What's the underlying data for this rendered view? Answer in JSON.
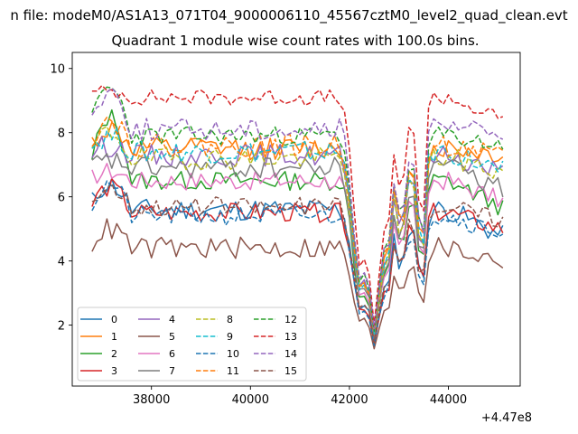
{
  "chart_data": {
    "type": "line",
    "suptitle": "n file: modeM0/AS1A13_071T04_9000006110_45567cztM0_level2_quad_clean.evt",
    "title": "Quadrant 1 module wise count rates with 100.0s bins.",
    "xlabel": "",
    "ylabel": "",
    "offset_label": "+4.47e8",
    "xlim": [
      36400,
      45450
    ],
    "ylim": [
      0.1,
      10.5
    ],
    "xticks": [
      38000,
      40000,
      42000,
      44000
    ],
    "xtick_labels": [
      "38000",
      "40000",
      "42000",
      "44000"
    ],
    "yticks": [
      2,
      4,
      6,
      8,
      10
    ],
    "ytick_labels": [
      "2",
      "4",
      "6",
      "8",
      "10"
    ],
    "grid": false,
    "legend_position": "lower-left",
    "legend_columns": 4,
    "x_start": 36800,
    "x_step": 100,
    "dip_profile": [
      [
        36800,
        0.0
      ],
      [
        41850,
        0.0
      ],
      [
        41950,
        0.12
      ],
      [
        42050,
        0.3
      ],
      [
        42150,
        0.58
      ],
      [
        42250,
        0.65
      ],
      [
        42350,
        0.55
      ],
      [
        42450,
        0.75
      ],
      [
        42550,
        0.92
      ],
      [
        42650,
        0.38
      ],
      [
        42750,
        0.62
      ],
      [
        42850,
        0.3
      ],
      [
        42950,
        0.1
      ],
      [
        43050,
        0.55
      ],
      [
        43150,
        0.05
      ],
      [
        43250,
        0.2
      ],
      [
        43350,
        0.02
      ],
      [
        43450,
        0.72
      ],
      [
        43550,
        0.1
      ],
      [
        43650,
        0.0
      ],
      [
        45050,
        0.0
      ]
    ],
    "series": [
      {
        "name": "0",
        "color": "#1f77b4",
        "dash": "solid",
        "base": 5.6,
        "start_bump": 0.8,
        "end_value": 4.8,
        "noise": 0.35,
        "seed": 11
      },
      {
        "name": "1",
        "color": "#ff7f0e",
        "dash": "solid",
        "base": 7.5,
        "start_bump": 0.6,
        "end_value": 7.3,
        "noise": 0.35,
        "seed": 12
      },
      {
        "name": "2",
        "color": "#2ca02c",
        "dash": "solid",
        "base": 6.5,
        "start_bump": 2.0,
        "end_value": 5.7,
        "noise": 0.3,
        "seed": 13
      },
      {
        "name": "3",
        "color": "#d62728",
        "dash": "solid",
        "base": 5.5,
        "start_bump": 0.8,
        "end_value": 5.0,
        "noise": 0.3,
        "seed": 14
      },
      {
        "name": "4",
        "color": "#9467bd",
        "dash": "solid",
        "base": 7.3,
        "start_bump": 0.3,
        "end_value": 6.8,
        "noise": 0.35,
        "seed": 15
      },
      {
        "name": "5",
        "color": "#8c564b",
        "dash": "solid",
        "base": 4.4,
        "start_bump": 0.6,
        "end_value": 4.0,
        "noise": 0.35,
        "seed": 16
      },
      {
        "name": "6",
        "color": "#e377c2",
        "dash": "solid",
        "base": 6.5,
        "start_bump": 0.3,
        "end_value": 5.9,
        "noise": 0.3,
        "seed": 17
      },
      {
        "name": "7",
        "color": "#7f7f7f",
        "dash": "solid",
        "base": 6.9,
        "start_bump": 0.2,
        "end_value": 6.3,
        "noise": 0.35,
        "seed": 18
      },
      {
        "name": "8",
        "color": "#bcbd22",
        "dash": "dashed",
        "base": 7.2,
        "start_bump": 0.8,
        "end_value": 6.8,
        "noise": 0.35,
        "seed": 19
      },
      {
        "name": "9",
        "color": "#17becf",
        "dash": "dashed",
        "base": 7.4,
        "start_bump": 0.5,
        "end_value": 6.8,
        "noise": 0.35,
        "seed": 20
      },
      {
        "name": "10",
        "color": "#1f77b4",
        "dash": "dashed",
        "base": 5.4,
        "start_bump": 1.0,
        "end_value": 4.9,
        "noise": 0.3,
        "seed": 21
      },
      {
        "name": "11",
        "color": "#ff7f0e",
        "dash": "dashed",
        "base": 7.6,
        "start_bump": 0.8,
        "end_value": 7.2,
        "noise": 0.35,
        "seed": 22
      },
      {
        "name": "12",
        "color": "#2ca02c",
        "dash": "dashed",
        "base": 7.9,
        "start_bump": 1.5,
        "end_value": 7.6,
        "noise": 0.3,
        "seed": 23
      },
      {
        "name": "13",
        "color": "#d62728",
        "dash": "dashed",
        "base": 9.1,
        "start_bump": 0.2,
        "end_value": 8.4,
        "noise": 0.25,
        "seed": 24
      },
      {
        "name": "14",
        "color": "#9467bd",
        "dash": "dashed",
        "base": 8.1,
        "start_bump": 1.2,
        "end_value": 8.0,
        "noise": 0.35,
        "seed": 25
      },
      {
        "name": "15",
        "color": "#8c564b",
        "dash": "dashed",
        "base": 5.7,
        "start_bump": 0.6,
        "end_value": 5.3,
        "noise": 0.3,
        "seed": 26
      }
    ]
  }
}
